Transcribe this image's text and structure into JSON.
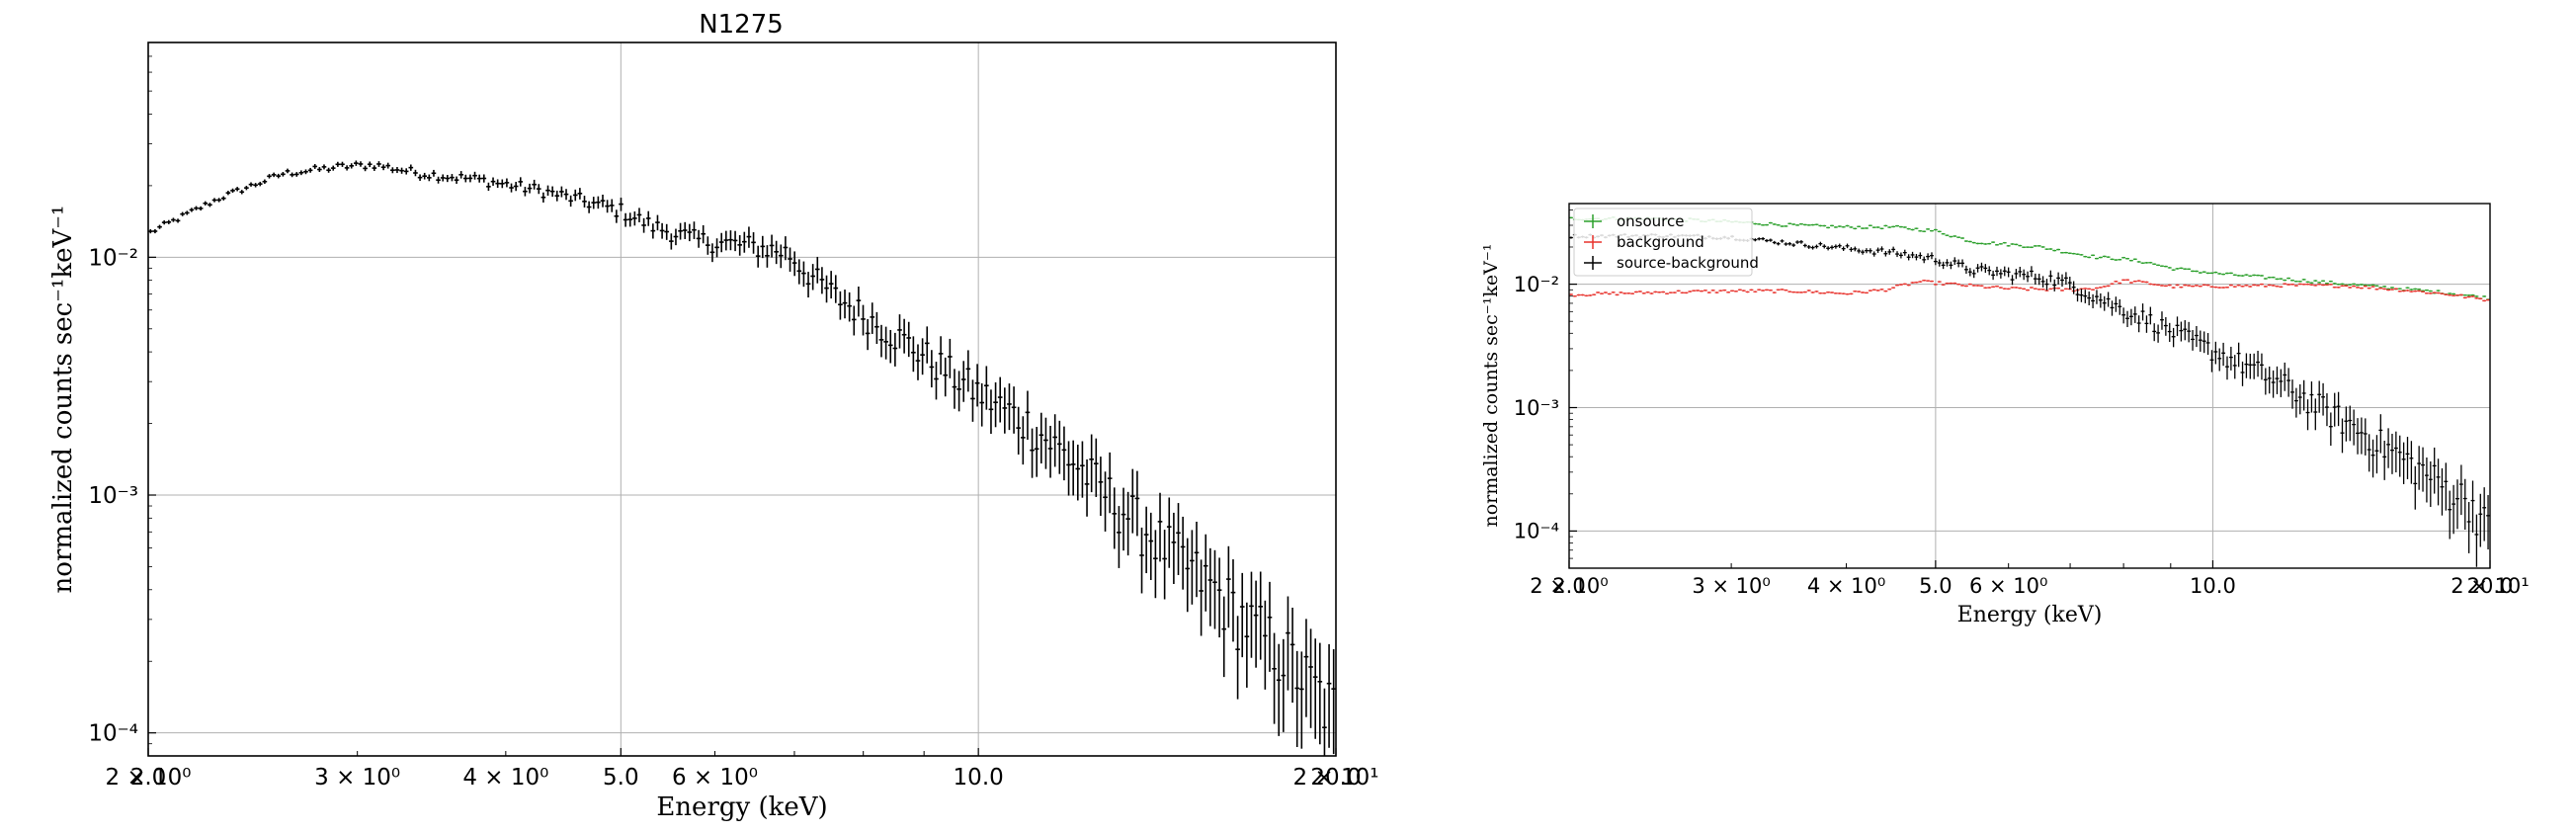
{
  "chart_data": [
    {
      "type": "scatter",
      "title": "N1275",
      "xlabel": "Energy (keV)",
      "ylabel": "normalized counts sec⁻¹keV⁻¹",
      "xscale": "log",
      "yscale": "log",
      "xlim": [
        2.0,
        20.0
      ],
      "ylim": [
        8e-05,
        0.08
      ],
      "grid": true,
      "xticks_major": [
        {
          "value": 2.0,
          "label": "2.0"
        },
        {
          "value": 5.0,
          "label": "5.0"
        },
        {
          "value": 10.0,
          "label": "10.0"
        },
        {
          "value": 20.0,
          "label": "20.0"
        }
      ],
      "xticks_minor": [
        {
          "value": 2.0,
          "label": "2 × 10⁰"
        },
        {
          "value": 3.0,
          "label": "3 × 10⁰"
        },
        {
          "value": 4.0,
          "label": "4 × 10⁰"
        },
        {
          "value": 6.0,
          "label": "6 × 10⁰"
        },
        {
          "value": 20.0,
          "label": "2 × 10¹"
        }
      ],
      "yticks": [
        {
          "value": 0.01,
          "label": "10⁻²"
        },
        {
          "value": 0.001,
          "label": "10⁻³"
        },
        {
          "value": 0.0001,
          "label": "10⁻⁴"
        }
      ],
      "series": [
        {
          "color": "#000000",
          "spectrum": [
            [
              2.0,
              0.0126
            ],
            [
              2.3,
              0.0178
            ],
            [
              2.6,
              0.0225
            ],
            [
              2.9,
              0.024
            ],
            [
              3.1,
              0.0245
            ],
            [
              3.4,
              0.0225
            ],
            [
              3.8,
              0.0212
            ],
            [
              4.3,
              0.019
            ],
            [
              4.7,
              0.017
            ],
            [
              5.0,
              0.0157
            ],
            [
              5.3,
              0.0136
            ],
            [
              5.8,
              0.0118
            ],
            [
              6.4,
              0.0112
            ],
            [
              6.9,
              0.0105
            ],
            [
              7.2,
              0.0085
            ],
            [
              7.6,
              0.0068
            ],
            [
              8.2,
              0.0053
            ],
            [
              8.8,
              0.0042
            ],
            [
              9.6,
              0.0031
            ],
            [
              10.0,
              0.0027
            ],
            [
              11.0,
              0.002
            ],
            [
              12.0,
              0.0014
            ],
            [
              13.0,
              0.00095
            ],
            [
              14.0,
              0.00068
            ],
            [
              15.0,
              0.0005
            ],
            [
              16.0,
              0.00038
            ],
            [
              17.0,
              0.00028
            ],
            [
              18.0,
              0.00022
            ],
            [
              19.0,
              0.00016
            ],
            [
              20.0,
              0.00012
            ]
          ]
        }
      ]
    },
    {
      "type": "scatter",
      "title": "",
      "xlabel": "Energy (keV)",
      "ylabel": "normalized counts sec⁻¹keV⁻¹",
      "xscale": "log",
      "yscale": "log",
      "xlim": [
        2.0,
        20.0
      ],
      "ylim": [
        5e-05,
        0.045
      ],
      "grid": true,
      "legend_position": "upper-left",
      "xticks_major": [
        {
          "value": 2.0,
          "label": "2.0"
        },
        {
          "value": 5.0,
          "label": "5.0"
        },
        {
          "value": 10.0,
          "label": "10.0"
        },
        {
          "value": 20.0,
          "label": "20.0"
        }
      ],
      "xticks_minor": [
        {
          "value": 2.0,
          "label": "2 × 10⁰"
        },
        {
          "value": 3.0,
          "label": "3 × 10⁰"
        },
        {
          "value": 4.0,
          "label": "4 × 10⁰"
        },
        {
          "value": 6.0,
          "label": "6 × 10⁰"
        },
        {
          "value": 20.0,
          "label": "2 × 10¹"
        }
      ],
      "yticks": [
        {
          "value": 0.01,
          "label": "10⁻²"
        },
        {
          "value": 0.001,
          "label": "10⁻³"
        },
        {
          "value": 0.0001,
          "label": "10⁻⁴"
        }
      ],
      "series": [
        {
          "name": "onsource",
          "color": "#2ca02c",
          "spectrum": [
            [
              2.0,
              0.034
            ],
            [
              2.5,
              0.034
            ],
            [
              3.0,
              0.032
            ],
            [
              3.5,
              0.03
            ],
            [
              4.0,
              0.029
            ],
            [
              4.5,
              0.029
            ],
            [
              5.0,
              0.027
            ],
            [
              5.5,
              0.022
            ],
            [
              6.0,
              0.021
            ],
            [
              6.5,
              0.02
            ],
            [
              7.0,
              0.018
            ],
            [
              7.5,
              0.0165
            ],
            [
              8.0,
              0.016
            ],
            [
              8.5,
              0.015
            ],
            [
              9.0,
              0.0135
            ],
            [
              10.0,
              0.0123
            ],
            [
              12.0,
              0.011
            ],
            [
              14.0,
              0.01
            ],
            [
              16.0,
              0.0092
            ],
            [
              18.0,
              0.0085
            ],
            [
              20.0,
              0.0077
            ]
          ]
        },
        {
          "name": "background",
          "color": "#e8322c",
          "spectrum": [
            [
              2.0,
              0.0082
            ],
            [
              2.5,
              0.0086
            ],
            [
              3.0,
              0.0088
            ],
            [
              3.5,
              0.0088
            ],
            [
              4.0,
              0.0084
            ],
            [
              4.4,
              0.009
            ],
            [
              4.8,
              0.0105
            ],
            [
              5.2,
              0.01
            ],
            [
              6.0,
              0.0092
            ],
            [
              7.0,
              0.009
            ],
            [
              7.5,
              0.0093
            ],
            [
              8.0,
              0.0107
            ],
            [
              8.5,
              0.0102
            ],
            [
              9.0,
              0.0096
            ],
            [
              10.0,
              0.0096
            ],
            [
              12.0,
              0.0098
            ],
            [
              14.0,
              0.0097
            ],
            [
              16.0,
              0.009
            ],
            [
              18.0,
              0.0083
            ],
            [
              20.0,
              0.0074
            ]
          ]
        },
        {
          "name": "source-background",
          "color": "#000000",
          "spectrum": [
            [
              2.0,
              0.0245
            ],
            [
              2.5,
              0.0248
            ],
            [
              3.0,
              0.024
            ],
            [
              3.5,
              0.0215
            ],
            [
              4.0,
              0.0195
            ],
            [
              4.5,
              0.018
            ],
            [
              5.0,
              0.016
            ],
            [
              5.5,
              0.013
            ],
            [
              6.0,
              0.0121
            ],
            [
              6.5,
              0.0115
            ],
            [
              7.0,
              0.01
            ],
            [
              7.5,
              0.0078
            ],
            [
              8.0,
              0.0062
            ],
            [
              8.5,
              0.0052
            ],
            [
              9.0,
              0.0042
            ],
            [
              10.0,
              0.0029
            ],
            [
              11.0,
              0.0021
            ],
            [
              12.0,
              0.0015
            ],
            [
              13.0,
              0.00105
            ],
            [
              14.0,
              0.00075
            ],
            [
              15.0,
              0.00055
            ],
            [
              16.0,
              0.0004
            ],
            [
              17.0,
              0.0003
            ],
            [
              18.0,
              0.00022
            ],
            [
              19.0,
              0.00018
            ],
            [
              20.0,
              0.0001
            ]
          ]
        }
      ]
    }
  ]
}
